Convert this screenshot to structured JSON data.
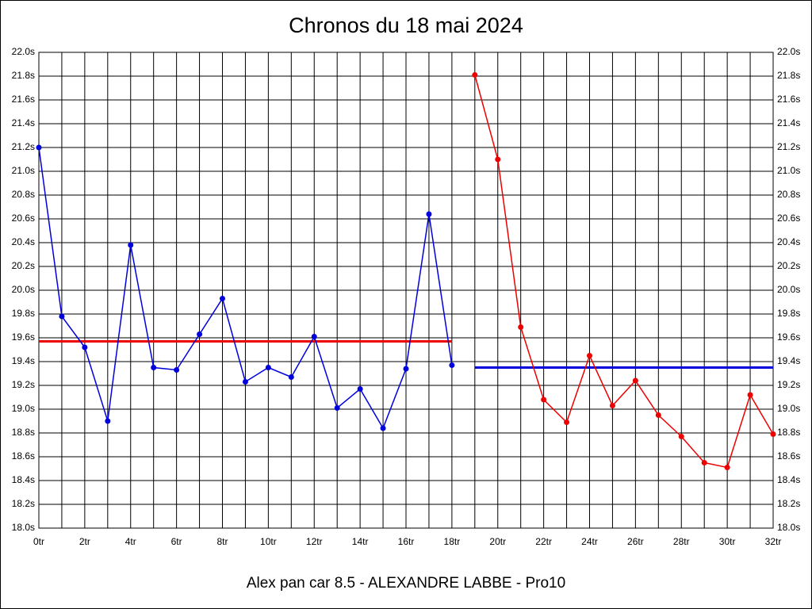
{
  "chart_data": {
    "type": "line",
    "title": "Chronos du 18 mai 2024",
    "x_label": "Alex pan car 8.5 - ALEXANDRE LABBE - Pro10",
    "xlim": [
      0,
      32
    ],
    "xticks": [
      {
        "value": 0,
        "label": "0tr"
      },
      {
        "value": 2,
        "label": "2tr"
      },
      {
        "value": 4,
        "label": "4tr"
      },
      {
        "value": 6,
        "label": "6tr"
      },
      {
        "value": 8,
        "label": "8tr"
      },
      {
        "value": 10,
        "label": "10tr"
      },
      {
        "value": 12,
        "label": "12tr"
      },
      {
        "value": 14,
        "label": "14tr"
      },
      {
        "value": 16,
        "label": "16tr"
      },
      {
        "value": 18,
        "label": "18tr"
      },
      {
        "value": 20,
        "label": "20tr"
      },
      {
        "value": 22,
        "label": "22tr"
      },
      {
        "value": 24,
        "label": "24tr"
      },
      {
        "value": 26,
        "label": "26tr"
      },
      {
        "value": 28,
        "label": "28tr"
      },
      {
        "value": 30,
        "label": "30tr"
      },
      {
        "value": 32,
        "label": "32tr"
      }
    ],
    "ylim": [
      18,
      22
    ],
    "yticks": [
      {
        "value": 18,
        "label": "18.0s"
      },
      {
        "value": 18.2,
        "label": "18.2s"
      },
      {
        "value": 18.4,
        "label": "18.4s"
      },
      {
        "value": 18.6,
        "label": "18.6s"
      },
      {
        "value": 18.8,
        "label": "18.8s"
      },
      {
        "value": 19,
        "label": "19.0s"
      },
      {
        "value": 19.2,
        "label": "19.2s"
      },
      {
        "value": 19.4,
        "label": "19.4s"
      },
      {
        "value": 19.6,
        "label": "19.6s"
      },
      {
        "value": 19.8,
        "label": "19.8s"
      },
      {
        "value": 20,
        "label": "20.0s"
      },
      {
        "value": 20.2,
        "label": "20.2s"
      },
      {
        "value": 20.4,
        "label": "20.4s"
      },
      {
        "value": 20.6,
        "label": "20.6s"
      },
      {
        "value": 20.8,
        "label": "20.8s"
      },
      {
        "value": 21,
        "label": "21.0s"
      },
      {
        "value": 21.2,
        "label": "21.2s"
      },
      {
        "value": 21.4,
        "label": "21.4s"
      },
      {
        "value": 21.6,
        "label": "21.6s"
      },
      {
        "value": 21.8,
        "label": "21.8s"
      },
      {
        "value": 22,
        "label": "22.0s"
      }
    ],
    "mirror_y_axis": true,
    "grid": true,
    "series": [
      {
        "color": "#0000dd",
        "x": [
          0,
          1,
          2,
          3,
          4,
          5,
          6,
          7,
          8,
          9,
          10,
          11,
          12,
          13,
          14,
          15,
          16,
          17,
          18
        ],
        "values": [
          21.2,
          19.78,
          19.52,
          18.9,
          20.38,
          19.35,
          19.33,
          19.63,
          19.93,
          19.23,
          19.35,
          19.27,
          19.61,
          19.01,
          19.17,
          18.84,
          19.34,
          20.64,
          19.37
        ]
      },
      {
        "color": "#ee0000",
        "x": [
          19,
          20,
          21,
          22,
          23,
          24,
          25,
          26,
          27,
          28,
          29,
          30,
          31,
          32
        ],
        "values": [
          21.81,
          21.1,
          19.69,
          19.08,
          18.89,
          19.45,
          19.03,
          19.24,
          18.95,
          18.77,
          18.55,
          18.51,
          19.12,
          18.79
        ]
      }
    ],
    "reference_lines": [
      {
        "color": "#ee0000",
        "value": 19.57,
        "xlim": [
          0,
          18
        ]
      },
      {
        "color": "#0000dd",
        "value": 19.35,
        "xlim": [
          19,
          32
        ]
      }
    ]
  }
}
